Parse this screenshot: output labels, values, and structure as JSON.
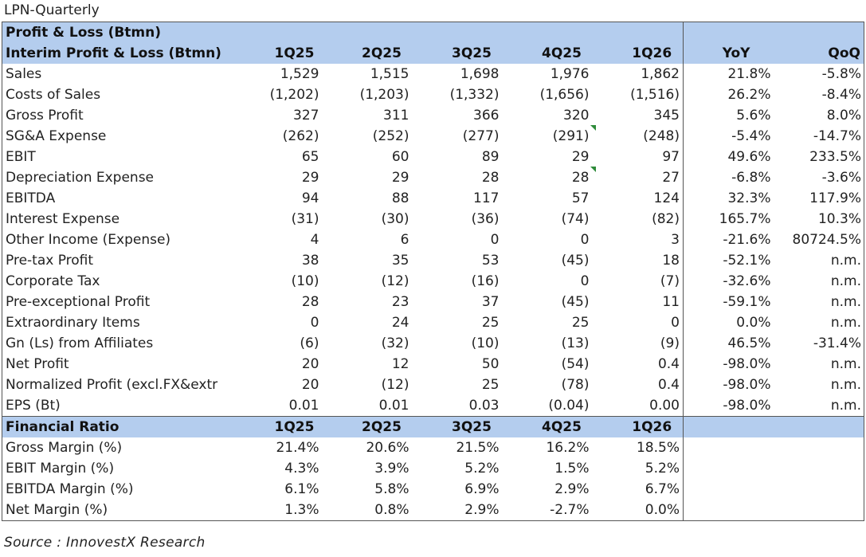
{
  "title": "LPN-Quarterly",
  "header": {
    "section1": "Profit & Loss (Btmn)",
    "section2": "Interim Profit & Loss (Btmn)",
    "periods": [
      "1Q25",
      "2Q25",
      "3Q25",
      "4Q25",
      "1Q26"
    ],
    "yoy": "YoY",
    "qoq": "QoQ"
  },
  "pl_rows": [
    {
      "label": "Sales",
      "values": [
        "1,529",
        "1,515",
        "1,698",
        "1,976",
        "1,862"
      ],
      "yoy": "21.8%",
      "qoq": "-5.8%"
    },
    {
      "label": "Costs of Sales",
      "values": [
        "(1,202)",
        "(1,203)",
        "(1,332)",
        "(1,656)",
        "(1,516)"
      ],
      "yoy": "26.2%",
      "qoq": "-8.4%"
    },
    {
      "label": "Gross Profit",
      "values": [
        "327",
        "311",
        "366",
        "320",
        "345"
      ],
      "yoy": "5.6%",
      "qoq": "8.0%"
    },
    {
      "label": "SG&A Expense",
      "values": [
        "(262)",
        "(252)",
        "(277)",
        "(291)",
        "(248)"
      ],
      "yoy": "-5.4%",
      "qoq": "-14.7%"
    },
    {
      "label": "EBIT",
      "values": [
        "65",
        "60",
        "89",
        "29",
        "97"
      ],
      "yoy": "49.6%",
      "qoq": "233.5%"
    },
    {
      "label": "Depreciation Expense",
      "values": [
        "29",
        "29",
        "28",
        "28",
        "27"
      ],
      "yoy": "-6.8%",
      "qoq": "-3.6%"
    },
    {
      "label": "EBITDA",
      "values": [
        "94",
        "88",
        "117",
        "57",
        "124"
      ],
      "yoy": "32.3%",
      "qoq": "117.9%"
    },
    {
      "label": "Interest Expense",
      "values": [
        "(31)",
        "(30)",
        "(36)",
        "(74)",
        "(82)"
      ],
      "yoy": "165.7%",
      "qoq": "10.3%"
    },
    {
      "label": "Other Income (Expense)",
      "values": [
        "4",
        "6",
        "0",
        "0",
        "3"
      ],
      "yoy": "-21.6%",
      "qoq": "80724.5%"
    },
    {
      "label": "Pre-tax Profit",
      "values": [
        "38",
        "35",
        "53",
        "(45)",
        "18"
      ],
      "yoy": "-52.1%",
      "qoq": "n.m."
    },
    {
      "label": "Corporate Tax",
      "values": [
        "(10)",
        "(12)",
        "(16)",
        "0",
        "(7)"
      ],
      "yoy": "-32.6%",
      "qoq": "n.m."
    },
    {
      "label": "Pre-exceptional Profit",
      "values": [
        "28",
        "23",
        "37",
        "(45)",
        "11"
      ],
      "yoy": "-59.1%",
      "qoq": "n.m."
    },
    {
      "label": "Extraordinary Items",
      "values": [
        "0",
        "24",
        "25",
        "25",
        "0"
      ],
      "yoy": "0.0%",
      "qoq": "n.m."
    },
    {
      "label": "Gn (Ls) from Affiliates",
      "values": [
        "(6)",
        "(32)",
        "(10)",
        "(13)",
        "(9)"
      ],
      "yoy": "46.5%",
      "qoq": "-31.4%"
    },
    {
      "label": "Net Profit",
      "values": [
        "20",
        "12",
        "50",
        "(54)",
        "0.4"
      ],
      "yoy": "-98.0%",
      "qoq": "n.m."
    },
    {
      "label": "Normalized Profit (excl.FX&extr",
      "values": [
        "20",
        "(12)",
        "25",
        "(78)",
        "0.4"
      ],
      "yoy": "-98.0%",
      "qoq": "n.m."
    },
    {
      "label": "EPS (Bt)",
      "values": [
        "0.01",
        "0.01",
        "0.03",
        "(0.04)",
        "0.00"
      ],
      "yoy": "-98.0%",
      "qoq": "n.m."
    }
  ],
  "ratio_header": {
    "label": "Financial Ratio",
    "periods": [
      "1Q25",
      "2Q25",
      "3Q25",
      "4Q25",
      "1Q26"
    ]
  },
  "ratio_rows": [
    {
      "label": "Gross Margin (%)",
      "values": [
        "21.4%",
        "20.6%",
        "21.5%",
        "16.2%",
        "18.5%"
      ]
    },
    {
      "label": "EBIT Margin (%)",
      "values": [
        "4.3%",
        "3.9%",
        "5.2%",
        "1.5%",
        "5.2%"
      ]
    },
    {
      "label": "EBITDA Margin (%)",
      "values": [
        "6.1%",
        "5.8%",
        "6.9%",
        "2.9%",
        "6.7%"
      ]
    },
    {
      "label": "Net Margin (%)",
      "values": [
        "1.3%",
        "0.8%",
        "2.9%",
        "-2.7%",
        "0.0%"
      ]
    }
  ],
  "source": "Source : InnovestX Research",
  "colors": {
    "header_bg": "#b4cdee",
    "comment_marker": "#2e8b3a"
  }
}
